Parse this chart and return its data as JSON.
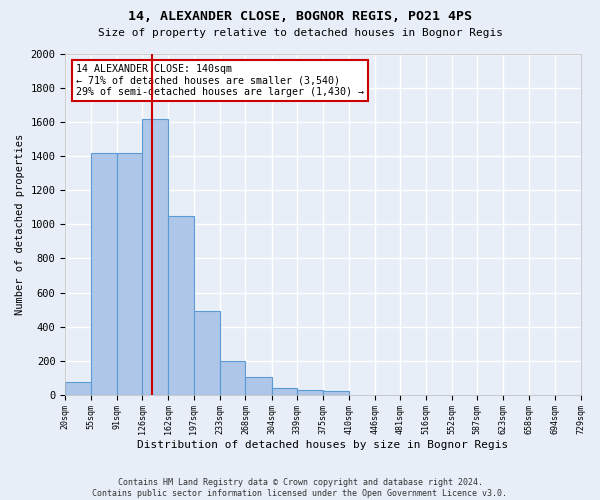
{
  "title": "14, ALEXANDER CLOSE, BOGNOR REGIS, PO21 4PS",
  "subtitle": "Size of property relative to detached houses in Bognor Regis",
  "xlabel": "Distribution of detached houses by size in Bognor Regis",
  "ylabel": "Number of detached properties",
  "bin_labels": [
    "20sqm",
    "55sqm",
    "91sqm",
    "126sqm",
    "162sqm",
    "197sqm",
    "233sqm",
    "268sqm",
    "304sqm",
    "339sqm",
    "375sqm",
    "410sqm",
    "446sqm",
    "481sqm",
    "516sqm",
    "552sqm",
    "587sqm",
    "623sqm",
    "658sqm",
    "694sqm",
    "729sqm"
  ],
  "bar_heights": [
    75,
    1420,
    1420,
    1620,
    1050,
    490,
    200,
    105,
    40,
    25,
    20,
    0,
    0,
    0,
    0,
    0,
    0,
    0,
    0,
    0
  ],
  "bar_color": "#aec6e8",
  "bar_edge_color": "#5b9bd5",
  "property_line_x": 140,
  "bin_edges": [
    20,
    55,
    91,
    126,
    162,
    197,
    233,
    268,
    304,
    339,
    375,
    410,
    446,
    481,
    516,
    552,
    587,
    623,
    658,
    694,
    729
  ],
  "ylim": [
    0,
    2000
  ],
  "annotation_text": "14 ALEXANDER CLOSE: 140sqm\n← 71% of detached houses are smaller (3,540)\n29% of semi-detached houses are larger (1,430) →",
  "annotation_box_color": "#ffffff",
  "annotation_box_edge": "#cc0000",
  "red_line_color": "#cc0000",
  "footnote": "Contains HM Land Registry data © Crown copyright and database right 2024.\nContains public sector information licensed under the Open Government Licence v3.0.",
  "background_color": "#e8eef8",
  "grid_color": "#ffffff"
}
